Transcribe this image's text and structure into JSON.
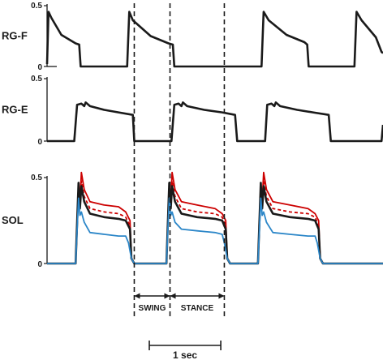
{
  "chart_data": [
    {
      "type": "line",
      "ylabel": "RG-F",
      "ylim": [
        0,
        0.5
      ],
      "yticks": [
        "0.5",
        "0"
      ],
      "x_unit": "s",
      "xlim": [
        0,
        4.7
      ],
      "series": [
        {
          "color": "#1a1a1a",
          "points": [
            [
              0,
              0.02
            ],
            [
              0.02,
              0.45
            ],
            [
              0.06,
              0.4
            ],
            [
              0.2,
              0.26
            ],
            [
              0.4,
              0.19
            ],
            [
              0.45,
              0.18
            ],
            [
              0.47,
              0
            ],
            [
              0.9,
              0
            ],
            [
              1.12,
              0
            ],
            [
              1.15,
              0.45
            ],
            [
              1.2,
              0.38
            ],
            [
              1.45,
              0.25
            ],
            [
              1.7,
              0.19
            ],
            [
              1.76,
              0.18
            ],
            [
              1.78,
              0
            ],
            [
              2.4,
              0
            ],
            [
              3.0,
              0
            ],
            [
              3.03,
              0.45
            ],
            [
              3.1,
              0.38
            ],
            [
              3.35,
              0.26
            ],
            [
              3.6,
              0.2
            ],
            [
              3.64,
              0.18
            ],
            [
              3.66,
              0
            ],
            [
              4.2,
              0
            ],
            [
              4.3,
              0
            ],
            [
              4.33,
              0.45
            ],
            [
              4.4,
              0.38
            ],
            [
              4.6,
              0.24
            ],
            [
              4.68,
              0.12
            ],
            [
              4.7,
              0.11
            ]
          ]
        }
      ]
    },
    {
      "type": "line",
      "ylabel": "RG-E",
      "ylim": [
        0,
        0.5
      ],
      "yticks": [
        "0.5",
        "0"
      ],
      "x_unit": "s",
      "xlim": [
        0,
        4.7
      ],
      "series": [
        {
          "color": "#1a1a1a",
          "points": [
            [
              0,
              0
            ],
            [
              0.38,
              0
            ],
            [
              0.42,
              0.29
            ],
            [
              0.48,
              0.3
            ],
            [
              0.52,
              0.28
            ],
            [
              0.54,
              0.31
            ],
            [
              0.6,
              0.28
            ],
            [
              0.8,
              0.25
            ],
            [
              1.0,
              0.23
            ],
            [
              1.2,
              0.21
            ],
            [
              1.22,
              0
            ],
            [
              1.74,
              0
            ],
            [
              1.78,
              0.29
            ],
            [
              1.84,
              0.3
            ],
            [
              1.88,
              0.28
            ],
            [
              1.9,
              0.31
            ],
            [
              1.96,
              0.28
            ],
            [
              2.2,
              0.25
            ],
            [
              2.45,
              0.23
            ],
            [
              2.63,
              0.21
            ],
            [
              2.66,
              0
            ],
            [
              3.05,
              0
            ],
            [
              3.08,
              0.29
            ],
            [
              3.14,
              0.3
            ],
            [
              3.18,
              0.28
            ],
            [
              3.2,
              0.31
            ],
            [
              3.26,
              0.28
            ],
            [
              3.5,
              0.25
            ],
            [
              3.72,
              0.23
            ],
            [
              3.94,
              0.21
            ],
            [
              3.97,
              0
            ],
            [
              4.68,
              0
            ],
            [
              4.7,
              0.13
            ]
          ]
        }
      ]
    },
    {
      "type": "line",
      "ylabel": "SOL",
      "ylim": [
        0,
        0.5
      ],
      "yticks": [
        "0.5",
        "0"
      ],
      "x_unit": "s",
      "xlim": [
        0,
        4.7
      ],
      "series": [
        {
          "color": "#cc0000",
          "dash": false,
          "points": [
            [
              0,
              0
            ],
            [
              0.4,
              0
            ],
            [
              0.44,
              0.44
            ],
            [
              0.46,
              0.36
            ],
            [
              0.48,
              0.53
            ],
            [
              0.52,
              0.43
            ],
            [
              0.6,
              0.36
            ],
            [
              0.8,
              0.34
            ],
            [
              1.0,
              0.33
            ],
            [
              1.1,
              0.3
            ],
            [
              1.16,
              0.25
            ],
            [
              1.18,
              0.03
            ],
            [
              1.22,
              0
            ],
            [
              1.67,
              0
            ],
            [
              1.71,
              0.44
            ],
            [
              1.73,
              0.36
            ],
            [
              1.75,
              0.53
            ],
            [
              1.79,
              0.43
            ],
            [
              1.88,
              0.36
            ],
            [
              2.1,
              0.34
            ],
            [
              2.35,
              0.32
            ],
            [
              2.45,
              0.29
            ],
            [
              2.5,
              0.25
            ],
            [
              2.52,
              0.03
            ],
            [
              2.56,
              0
            ],
            [
              2.95,
              0
            ],
            [
              2.99,
              0.44
            ],
            [
              3.01,
              0.36
            ],
            [
              3.03,
              0.53
            ],
            [
              3.07,
              0.43
            ],
            [
              3.16,
              0.36
            ],
            [
              3.4,
              0.34
            ],
            [
              3.65,
              0.32
            ],
            [
              3.75,
              0.29
            ],
            [
              3.8,
              0.25
            ],
            [
              3.82,
              0.03
            ],
            [
              3.86,
              0
            ],
            [
              4.7,
              0
            ]
          ]
        },
        {
          "color": "#cc0000",
          "dash": true,
          "points": [
            [
              0,
              0
            ],
            [
              0.4,
              0
            ],
            [
              0.44,
              0.42
            ],
            [
              0.46,
              0.34
            ],
            [
              0.48,
              0.48
            ],
            [
              0.52,
              0.39
            ],
            [
              0.6,
              0.32
            ],
            [
              0.8,
              0.3
            ],
            [
              1.0,
              0.29
            ],
            [
              1.1,
              0.27
            ],
            [
              1.16,
              0.22
            ],
            [
              1.18,
              0.03
            ],
            [
              1.22,
              0
            ],
            [
              1.67,
              0
            ],
            [
              1.71,
              0.42
            ],
            [
              1.73,
              0.34
            ],
            [
              1.75,
              0.48
            ],
            [
              1.79,
              0.39
            ],
            [
              1.88,
              0.32
            ],
            [
              2.1,
              0.3
            ],
            [
              2.35,
              0.29
            ],
            [
              2.45,
              0.27
            ],
            [
              2.5,
              0.22
            ],
            [
              2.52,
              0.03
            ],
            [
              2.56,
              0
            ],
            [
              2.95,
              0
            ],
            [
              2.99,
              0.42
            ],
            [
              3.01,
              0.34
            ],
            [
              3.03,
              0.48
            ],
            [
              3.07,
              0.39
            ],
            [
              3.16,
              0.32
            ],
            [
              3.4,
              0.3
            ],
            [
              3.65,
              0.29
            ],
            [
              3.75,
              0.27
            ],
            [
              3.8,
              0.22
            ],
            [
              3.82,
              0.03
            ],
            [
              3.86,
              0
            ],
            [
              4.7,
              0
            ]
          ]
        },
        {
          "color": "#1a1a1a",
          "dash": false,
          "points": [
            [
              0,
              0
            ],
            [
              0.4,
              0
            ],
            [
              0.44,
              0.47
            ],
            [
              0.46,
              0.32
            ],
            [
              0.48,
              0.45
            ],
            [
              0.52,
              0.36
            ],
            [
              0.6,
              0.29
            ],
            [
              0.8,
              0.27
            ],
            [
              1.0,
              0.26
            ],
            [
              1.1,
              0.25
            ],
            [
              1.16,
              0.2
            ],
            [
              1.18,
              0.03
            ],
            [
              1.22,
              0
            ],
            [
              1.67,
              0
            ],
            [
              1.71,
              0.47
            ],
            [
              1.73,
              0.32
            ],
            [
              1.75,
              0.45
            ],
            [
              1.79,
              0.36
            ],
            [
              1.88,
              0.29
            ],
            [
              2.1,
              0.27
            ],
            [
              2.35,
              0.26
            ],
            [
              2.45,
              0.25
            ],
            [
              2.5,
              0.2
            ],
            [
              2.52,
              0.03
            ],
            [
              2.56,
              0
            ],
            [
              2.95,
              0
            ],
            [
              2.99,
              0.47
            ],
            [
              3.01,
              0.32
            ],
            [
              3.03,
              0.45
            ],
            [
              3.07,
              0.36
            ],
            [
              3.16,
              0.29
            ],
            [
              3.4,
              0.27
            ],
            [
              3.65,
              0.26
            ],
            [
              3.75,
              0.25
            ],
            [
              3.8,
              0.2
            ],
            [
              3.82,
              0.03
            ],
            [
              3.86,
              0
            ],
            [
              4.7,
              0
            ]
          ]
        },
        {
          "color": "#2b86c8",
          "dash": false,
          "points": [
            [
              0,
              0
            ],
            [
              0.4,
              0
            ],
            [
              0.44,
              0.38
            ],
            [
              0.46,
              0.28
            ],
            [
              0.48,
              0.3
            ],
            [
              0.52,
              0.24
            ],
            [
              0.6,
              0.18
            ],
            [
              0.8,
              0.17
            ],
            [
              1.0,
              0.16
            ],
            [
              1.1,
              0.16
            ],
            [
              1.14,
              0.12
            ],
            [
              1.18,
              0.03
            ],
            [
              1.22,
              0
            ],
            [
              1.67,
              0
            ],
            [
              1.71,
              0.38
            ],
            [
              1.73,
              0.28
            ],
            [
              1.75,
              0.3
            ],
            [
              1.79,
              0.24
            ],
            [
              1.88,
              0.2
            ],
            [
              2.1,
              0.19
            ],
            [
              2.35,
              0.18
            ],
            [
              2.45,
              0.17
            ],
            [
              2.48,
              0.12
            ],
            [
              2.52,
              0.03
            ],
            [
              2.56,
              0
            ],
            [
              2.95,
              0
            ],
            [
              2.99,
              0.38
            ],
            [
              3.01,
              0.28
            ],
            [
              3.03,
              0.3
            ],
            [
              3.07,
              0.24
            ],
            [
              3.16,
              0.18
            ],
            [
              3.4,
              0.17
            ],
            [
              3.65,
              0.16
            ],
            [
              3.75,
              0.16
            ],
            [
              3.78,
              0.12
            ],
            [
              3.82,
              0.03
            ],
            [
              3.86,
              0
            ],
            [
              4.7,
              0
            ]
          ]
        }
      ]
    }
  ],
  "phase_markers_s": [
    1.22,
    1.72,
    2.48
  ],
  "phases": {
    "swing": "SWING",
    "stance": "STANCE"
  },
  "scale_bar": {
    "label": "1 sec",
    "seconds": 1.0
  }
}
